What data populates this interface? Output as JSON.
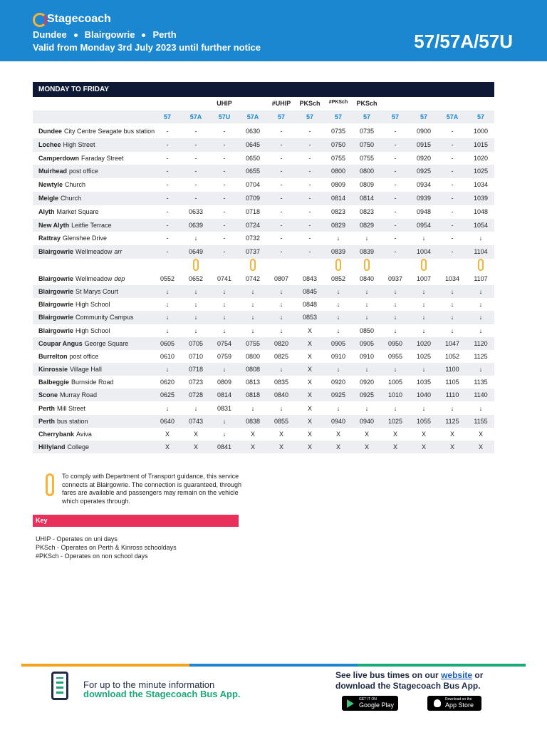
{
  "header": {
    "brand": "Stagecoach",
    "stops": [
      "Dundee",
      "Blairgowrie",
      "Perth"
    ],
    "validity": "Valid from Monday 3rd July 2023 until further notice",
    "service": "57/57A/57U"
  },
  "table": {
    "title": "MONDAY TO FRIDAY",
    "notes": [
      null,
      null,
      "UHIP",
      null,
      "#UHIP",
      "PKSch",
      "#PKSch",
      "PKSch",
      null,
      null,
      null,
      null
    ],
    "routes": [
      "57",
      "57A",
      "57U",
      "57A",
      "57",
      "57",
      "57",
      "57",
      "57",
      "57",
      "57A",
      "57"
    ],
    "sections": [
      {
        "rows": [
          {
            "place": "Dundee",
            "desc": "City Centre Seagate bus station",
            "times": [
              "-",
              "-",
              "-",
              "0630",
              "-",
              "-",
              "0735",
              "0735",
              "-",
              "0900",
              "-",
              "1000"
            ]
          },
          {
            "place": "Lochee",
            "desc": "High Street",
            "times": [
              "-",
              "-",
              "-",
              "0645",
              "-",
              "-",
              "0750",
              "0750",
              "-",
              "0915",
              "-",
              "1015"
            ]
          },
          {
            "place": "Camperdown",
            "desc": "Faraday Street",
            "times": [
              "-",
              "-",
              "-",
              "0650",
              "-",
              "-",
              "0755",
              "0755",
              "-",
              "0920",
              "-",
              "1020"
            ]
          },
          {
            "place": "Muirhead",
            "desc": "post office",
            "times": [
              "-",
              "-",
              "-",
              "0655",
              "-",
              "-",
              "0800",
              "0800",
              "-",
              "0925",
              "-",
              "1025"
            ]
          },
          {
            "place": "Newtyle",
            "desc": "Church",
            "times": [
              "-",
              "-",
              "-",
              "0704",
              "-",
              "-",
              "0809",
              "0809",
              "-",
              "0934",
              "-",
              "1034"
            ]
          },
          {
            "place": "Meigle",
            "desc": "Church",
            "times": [
              "-",
              "-",
              "-",
              "0709",
              "-",
              "-",
              "0814",
              "0814",
              "-",
              "0939",
              "-",
              "1039"
            ]
          },
          {
            "place": "Alyth",
            "desc": "Market Square",
            "times": [
              "-",
              "0633",
              "-",
              "0718",
              "-",
              "-",
              "0823",
              "0823",
              "-",
              "0948",
              "-",
              "1048"
            ]
          },
          {
            "place": "New Alyth",
            "desc": "Leitfie Terrace",
            "times": [
              "-",
              "0639",
              "-",
              "0724",
              "-",
              "-",
              "0829",
              "0829",
              "-",
              "0954",
              "-",
              "1054"
            ]
          },
          {
            "place": "Rattray",
            "desc": "Glenshee Drive",
            "times": [
              "-",
              "↓",
              "-",
              "0732",
              "-",
              "-",
              "↓",
              "↓",
              "-",
              "↓",
              "-",
              "↓"
            ]
          },
          {
            "place": "Blairgowrie",
            "desc": "Wellmeadow",
            "suffix": "arr",
            "times": [
              "-",
              "0649",
              "-",
              "0737",
              "-",
              "-",
              "0839",
              "0839",
              "-",
              "1004",
              "-",
              "1104"
            ]
          }
        ]
      },
      {
        "rows": [
          {
            "place": "Blairgowrie",
            "desc": "Wellmeadow",
            "suffix": "dep",
            "times": [
              "0552",
              "0652",
              "0741",
              "0742",
              "0807",
              "0843",
              "0852",
              "0840",
              "0937",
              "1007",
              "1034",
              "1107"
            ]
          },
          {
            "place": "Blairgowrie",
            "desc": "St Marys Court",
            "times": [
              "↓",
              "↓",
              "↓",
              "↓",
              "↓",
              "0845",
              "↓",
              "↓",
              "↓",
              "↓",
              "↓",
              "↓"
            ]
          },
          {
            "place": "Blairgowrie",
            "desc": "High School",
            "times": [
              "↓",
              "↓",
              "↓",
              "↓",
              "↓",
              "0848",
              "↓",
              "↓",
              "↓",
              "↓",
              "↓",
              "↓"
            ]
          },
          {
            "place": "Blairgowrie",
            "desc": "Community Campus",
            "times": [
              "↓",
              "↓",
              "↓",
              "↓",
              "↓",
              "0853",
              "↓",
              "↓",
              "↓",
              "↓",
              "↓",
              "↓"
            ]
          },
          {
            "place": "Blairgowrie",
            "desc": "High School",
            "times": [
              "↓",
              "↓",
              "↓",
              "↓",
              "↓",
              "X",
              "↓",
              "0850",
              "↓",
              "↓",
              "↓",
              "↓"
            ]
          },
          {
            "place": "Coupar Angus",
            "desc": "George Square",
            "times": [
              "0605",
              "0705",
              "0754",
              "0755",
              "0820",
              "X",
              "0905",
              "0905",
              "0950",
              "1020",
              "1047",
              "1120"
            ]
          },
          {
            "place": "Burrelton",
            "desc": "post office",
            "times": [
              "0610",
              "0710",
              "0759",
              "0800",
              "0825",
              "X",
              "0910",
              "0910",
              "0955",
              "1025",
              "1052",
              "1125"
            ]
          },
          {
            "place": "Kinrossie",
            "desc": "Village Hall",
            "times": [
              "↓",
              "0718",
              "↓",
              "0808",
              "↓",
              "X",
              "↓",
              "↓",
              "↓",
              "↓",
              "1100",
              "↓"
            ]
          },
          {
            "place": "Balbeggie",
            "desc": "Burnside Road",
            "times": [
              "0620",
              "0723",
              "0809",
              "0813",
              "0835",
              "X",
              "0920",
              "0920",
              "1005",
              "1035",
              "1105",
              "1135"
            ]
          },
          {
            "place": "Scone",
            "desc": "Murray Road",
            "times": [
              "0625",
              "0728",
              "0814",
              "0818",
              "0840",
              "X",
              "0925",
              "0925",
              "1010",
              "1040",
              "1110",
              "1140"
            ]
          },
          {
            "place": "Perth",
            "desc": "Mill Street",
            "times": [
              "↓",
              "↓",
              "0831",
              "↓",
              "↓",
              "X",
              "↓",
              "↓",
              "↓",
              "↓",
              "↓",
              "↓"
            ]
          },
          {
            "place": "Perth",
            "desc": "bus station",
            "times": [
              "0640",
              "0743",
              "↓",
              "0838",
              "0855",
              "X",
              "0940",
              "0940",
              "1025",
              "1055",
              "1125",
              "1155"
            ]
          },
          {
            "place": "Cherrybank",
            "desc": "Aviva",
            "times": [
              "X",
              "X",
              "↓",
              "X",
              "X",
              "X",
              "X",
              "X",
              "X",
              "X",
              "X",
              "X"
            ]
          },
          {
            "place": "Hillyland",
            "desc": "College",
            "times": [
              "X",
              "X",
              "0841",
              "X",
              "X",
              "X",
              "X",
              "X",
              "X",
              "X",
              "X",
              "X"
            ]
          }
        ]
      }
    ]
  },
  "connection_note": "To comply with Department of Transport guidance, this service connects at Blairgowrie. The connection is guaranteed, through fares are available and passengers may remain on the vehicle which operates through.",
  "key": {
    "title": "Key",
    "lines": [
      "UHIP - Operates on uni days",
      "PKSch - Operates on Perth & Kinross schooldays",
      "#PKSch - Operates on non school days"
    ]
  },
  "footer": {
    "info": "For up to the minute information",
    "app": "download the Stagecoach Bus App.",
    "live_1": "See live bus times on our",
    "link": "website",
    "live_2": "or",
    "live_3": "download the Stagecoach Bus App.",
    "google_small": "GET IT ON",
    "google": "Google Play",
    "apple_small": "Download on the",
    "apple": "App Store"
  }
}
